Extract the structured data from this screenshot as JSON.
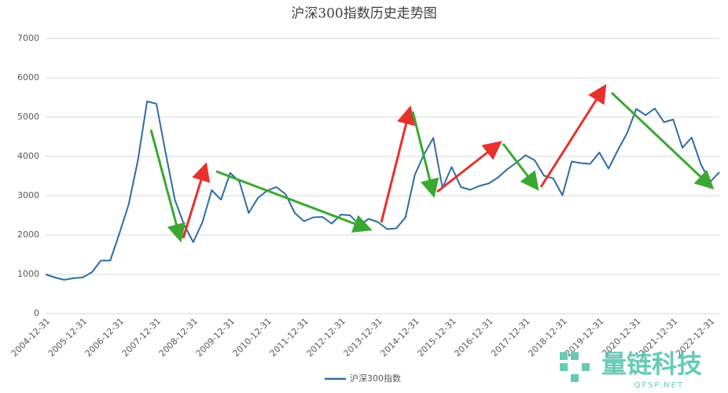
{
  "chart_data": {
    "type": "line",
    "title": "沪深300指数历史走势图",
    "categories": [
      "2004-12-31",
      null,
      null,
      null,
      "2005-12-31",
      null,
      null,
      null,
      "2006-12-31",
      null,
      null,
      null,
      "2007-12-31",
      null,
      null,
      null,
      "2008-12-31",
      null,
      null,
      null,
      "2009-12-31",
      null,
      null,
      null,
      "2010-12-31",
      null,
      null,
      null,
      "2011-12-31",
      null,
      null,
      null,
      "2012-12-31",
      null,
      null,
      null,
      "2013-12-31",
      null,
      null,
      null,
      "2014-12-31",
      null,
      null,
      null,
      "2015-12-31",
      null,
      null,
      null,
      "2016-12-31",
      null,
      null,
      null,
      "2017-12-31",
      null,
      null,
      null,
      "2018-12-31",
      null,
      null,
      null,
      "2019-12-31",
      null,
      null,
      null,
      "2020-12-31",
      null,
      null,
      null,
      "2021-12-31",
      null,
      null,
      null,
      "2022-12-31",
      null
    ],
    "series": [
      {
        "name": "沪深300指数",
        "color": "#2e6ca4",
        "values": [
          1000,
          920,
          860,
          900,
          920,
          1050,
          1350,
          1350,
          2040,
          2780,
          3900,
          5400,
          5340,
          4100,
          2900,
          2260,
          1820,
          2330,
          3140,
          2900,
          3580,
          3360,
          2560,
          2940,
          3130,
          3220,
          3040,
          2560,
          2350,
          2450,
          2460,
          2290,
          2520,
          2500,
          2250,
          2410,
          2330,
          2150,
          2170,
          2450,
          3530,
          4050,
          4470,
          3200,
          3730,
          3220,
          3150,
          3250,
          3310,
          3460,
          3670,
          3840,
          4030,
          3900,
          3510,
          3440,
          3010,
          3870,
          3830,
          3810,
          4100,
          3690,
          4160,
          4590,
          5210,
          5050,
          5220,
          4870,
          4940,
          4220,
          4480,
          3800,
          3350,
          3600
        ]
      }
    ],
    "ylim": [
      0,
      7000
    ],
    "yticks": [
      0,
      1000,
      2000,
      3000,
      4000,
      5000,
      6000,
      7000
    ],
    "grid": true,
    "watermark": {
      "text": "量链科技",
      "site": "QFSP.NET"
    }
  }
}
